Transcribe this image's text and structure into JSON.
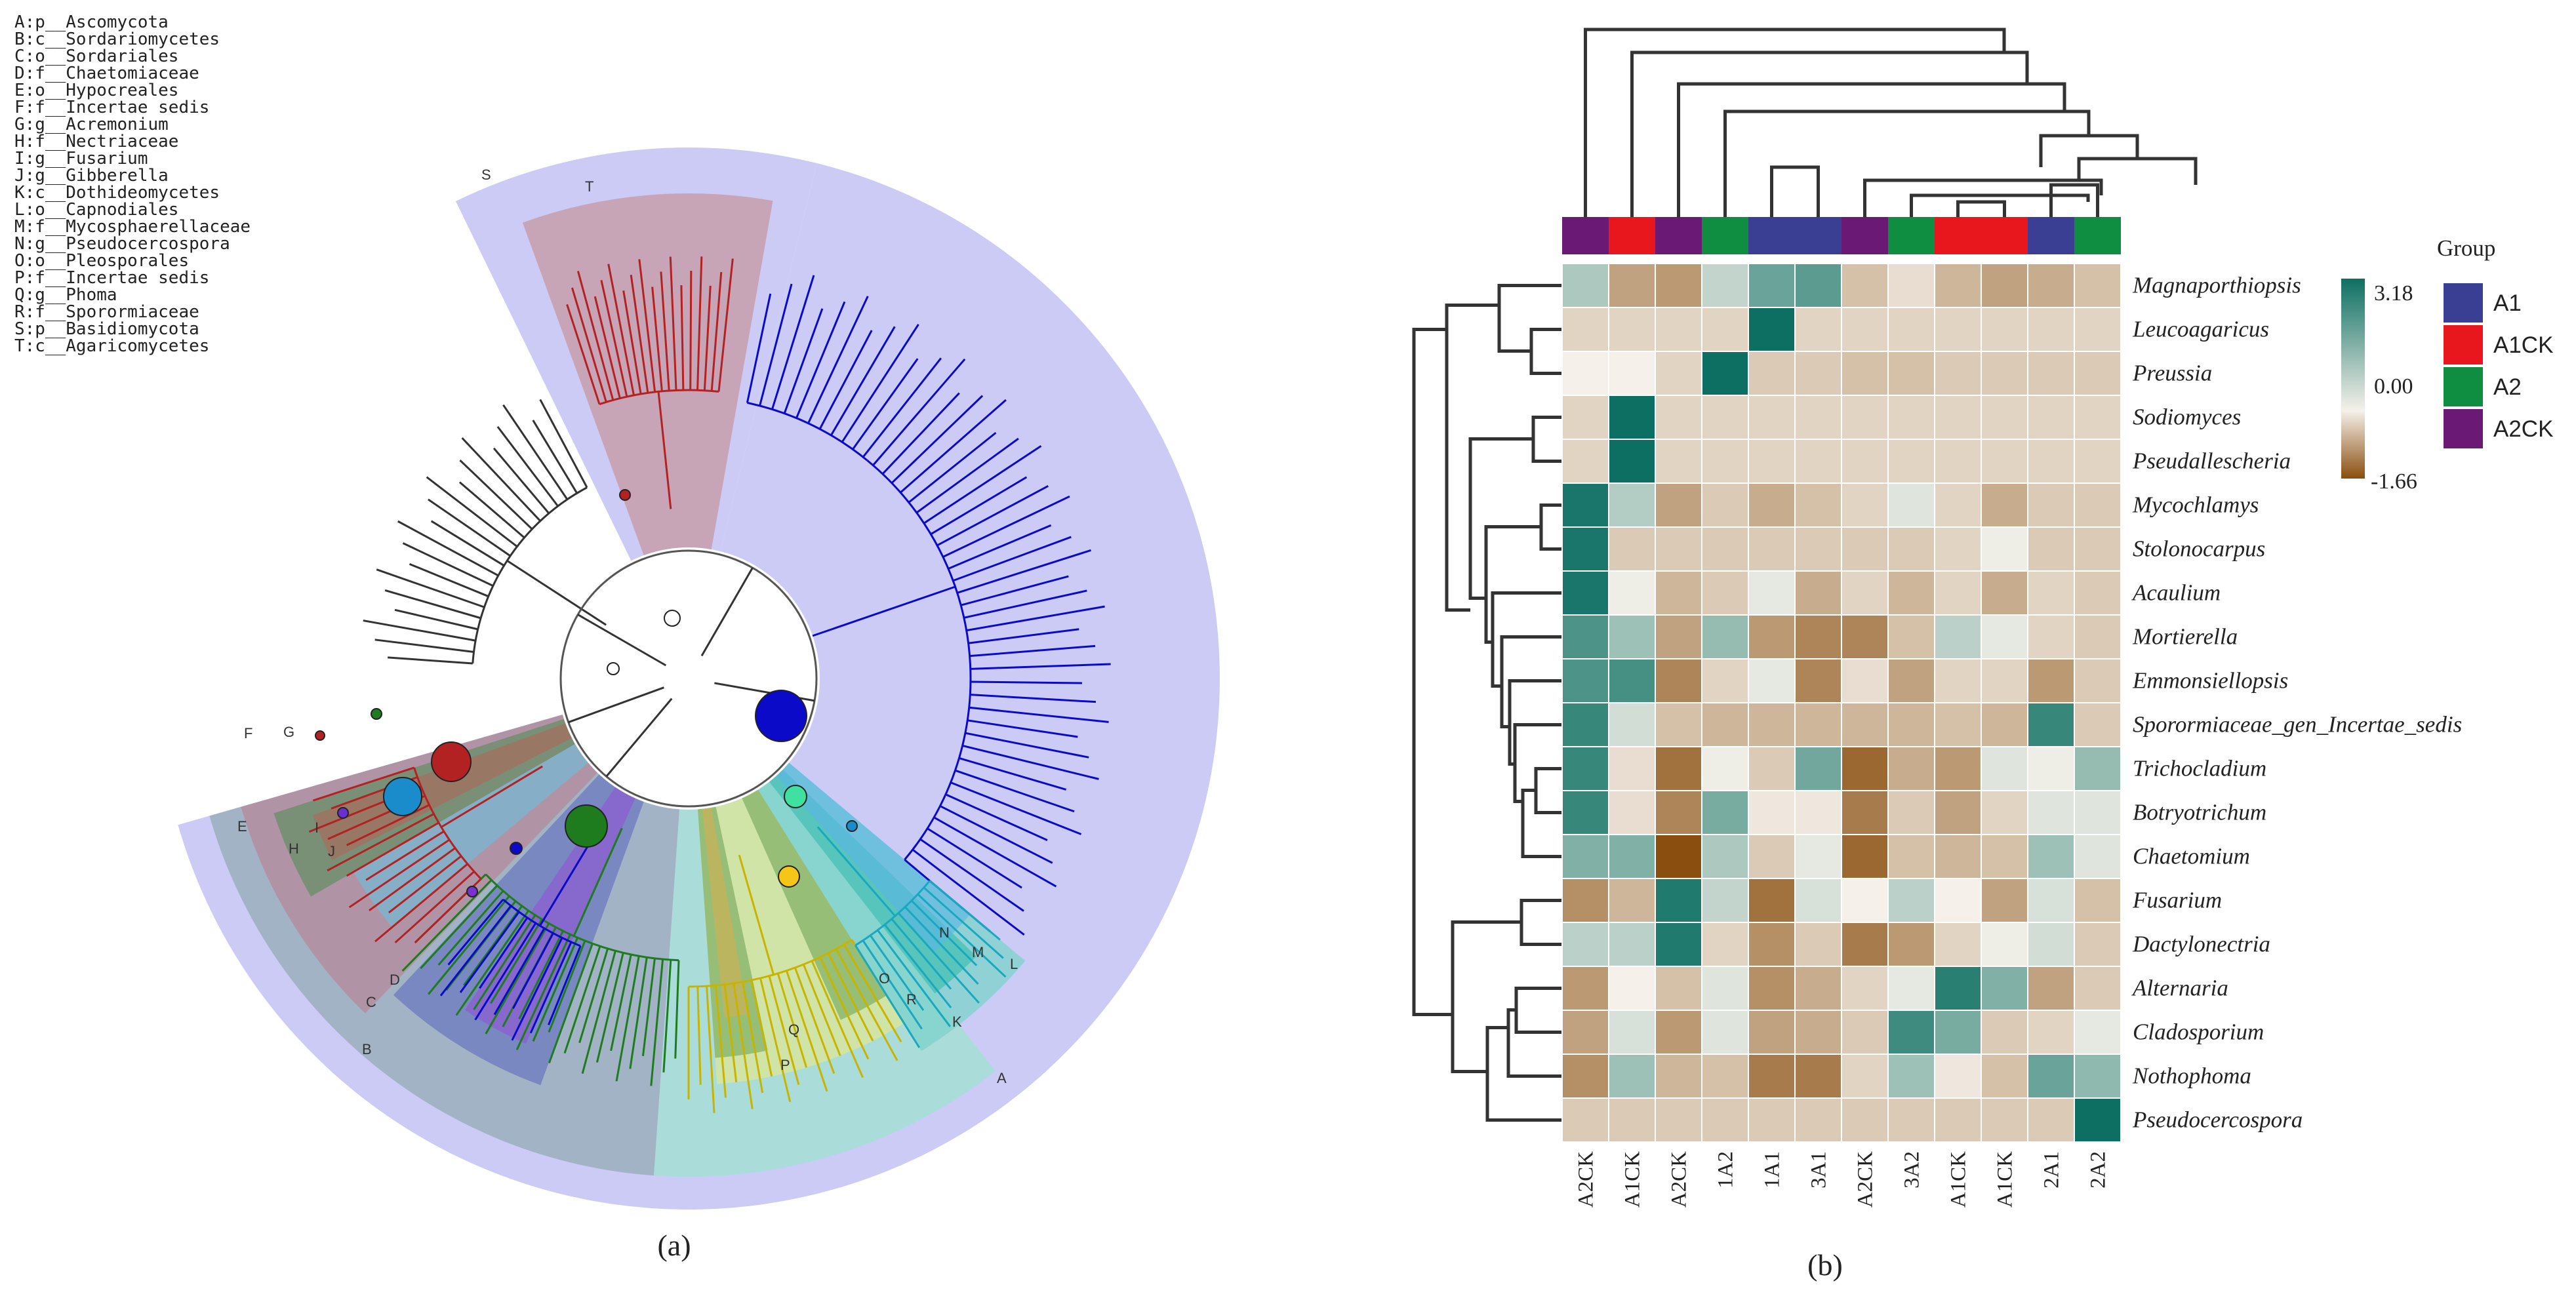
{
  "panel_a": {
    "label": "(a)",
    "taxa_legend": [
      "A:p__Ascomycota",
      "B:c__Sordariomycetes",
      "C:o__Sordariales",
      "D:f__Chaetomiaceae",
      "E:o__Hypocreales",
      "F:f__Incertae sedis",
      "G:g__Acremonium",
      "H:f__Nectriaceae",
      "I:g__Fusarium",
      "J:g__Gibberella",
      "K:c__Dothideomycetes",
      "L:o__Capnodiales",
      "M:f__Mycosphaerellaceae",
      "N:g__Pseudocercospora",
      "O:o__Pleosporales",
      "P:f__Incertae sedis",
      "Q:g__Phoma",
      "R:f__Sporormiaceae",
      "S:p__Basidiomycota",
      "T:c__Agaricomycetes"
    ],
    "clade_letters": [
      "A",
      "B",
      "C",
      "D",
      "E",
      "F",
      "G",
      "H",
      "I",
      "J",
      "K",
      "L",
      "M",
      "N",
      "O",
      "P",
      "Q",
      "R",
      "S",
      "T"
    ],
    "colors": {
      "A2": "#0a0ac8",
      "A2CK": "#b22222",
      "A1": "#1e7b1e",
      "A1CK": "#1a8ccc",
      "outer": "#c8c8f5",
      "neutral": "#333333"
    }
  },
  "chart_data": {
    "type": "heatmap",
    "title": "",
    "panel_label": "(b)",
    "columns": [
      "A2CK",
      "A1CK",
      "A2CK",
      "1A2",
      "1A1",
      "3A1",
      "A2CK",
      "3A2",
      "A1CK",
      "A1CK",
      "2A1",
      "2A2"
    ],
    "column_groups": [
      "A2CK",
      "A1CK",
      "A2CK",
      "A2",
      "A1",
      "A1",
      "A2CK",
      "A2",
      "A1CK",
      "A1CK",
      "A1",
      "A2"
    ],
    "rows": [
      "Magnaporthiopsis",
      "Leucoagaricus",
      "Preussia",
      "Sodiomyces",
      "Pseudallescheria",
      "Mycochlamys",
      "Stolonocarpus",
      "Acaulium",
      "Mortierella",
      "Emmonsiellopsis",
      "Sporormiaceae_gen_Incertae_sedis",
      "Trichocladium",
      "Botryotrichum",
      "Chaetomium",
      "Fusarium",
      "Dactylonectria",
      "Alternaria",
      "Cladosporium",
      "Nothophoma",
      "Pseudocercospora"
    ],
    "values": [
      [
        1.0,
        -0.8,
        -0.9,
        0.7,
        1.9,
        2.1,
        -0.5,
        -0.2,
        -0.6,
        -0.8,
        -0.7,
        -0.5
      ],
      [
        -0.3,
        -0.3,
        -0.3,
        -0.3,
        3.18,
        -0.3,
        -0.3,
        -0.3,
        -0.3,
        -0.3,
        -0.3,
        -0.3
      ],
      [
        0.0,
        0.0,
        -0.3,
        3.18,
        -0.4,
        -0.4,
        -0.5,
        -0.5,
        -0.4,
        -0.4,
        -0.4,
        -0.4
      ],
      [
        -0.3,
        3.18,
        -0.3,
        -0.3,
        -0.3,
        -0.3,
        -0.3,
        -0.3,
        -0.3,
        -0.3,
        -0.3,
        -0.3
      ],
      [
        -0.3,
        3.18,
        -0.3,
        -0.3,
        -0.3,
        -0.3,
        -0.3,
        -0.3,
        -0.3,
        -0.3,
        -0.3,
        -0.3
      ],
      [
        3.0,
        0.9,
        -0.8,
        -0.4,
        -0.7,
        -0.5,
        -0.3,
        0.3,
        -0.3,
        -0.7,
        -0.4,
        -0.4
      ],
      [
        3.0,
        -0.4,
        -0.4,
        -0.4,
        -0.4,
        -0.4,
        -0.4,
        -0.4,
        -0.3,
        0.1,
        -0.4,
        -0.4
      ],
      [
        3.0,
        0.1,
        -0.6,
        -0.4,
        0.2,
        -0.7,
        -0.3,
        -0.6,
        -0.3,
        -0.7,
        -0.3,
        -0.4
      ],
      [
        2.3,
        1.2,
        -0.8,
        1.3,
        -0.9,
        -1.1,
        -1.1,
        -0.5,
        0.8,
        0.2,
        -0.3,
        -0.4
      ],
      [
        2.3,
        2.4,
        -1.1,
        -0.3,
        0.2,
        -1.1,
        -0.2,
        -0.8,
        -0.3,
        -0.3,
        -0.9,
        -0.4
      ],
      [
        2.6,
        0.5,
        -0.5,
        -0.6,
        -0.6,
        -0.6,
        -0.6,
        -0.6,
        -0.5,
        -0.6,
        2.6,
        -0.4
      ],
      [
        2.6,
        -0.2,
        -1.3,
        0.1,
        -0.4,
        1.8,
        -1.4,
        -0.7,
        -0.9,
        0.3,
        0.1,
        1.3
      ],
      [
        2.6,
        -0.2,
        -1.1,
        1.7,
        -0.1,
        -0.1,
        -1.2,
        -0.4,
        -0.8,
        -0.3,
        0.3,
        0.3
      ],
      [
        1.6,
        1.6,
        -1.66,
        1.0,
        -0.4,
        0.2,
        -1.4,
        -0.5,
        -0.6,
        -0.5,
        1.2,
        0.3
      ],
      [
        -1.0,
        -0.6,
        2.9,
        0.7,
        -1.3,
        0.4,
        0.0,
        0.8,
        0.0,
        -0.8,
        0.4,
        -0.5
      ],
      [
        0.8,
        0.8,
        2.9,
        -0.3,
        -1.0,
        -0.4,
        -1.2,
        -0.9,
        -0.3,
        0.1,
        0.5,
        -0.4
      ],
      [
        -0.9,
        0.0,
        -0.5,
        0.3,
        -1.0,
        -0.7,
        -0.3,
        0.2,
        2.8,
        1.6,
        -0.8,
        -0.4
      ],
      [
        -0.8,
        0.4,
        -0.9,
        0.3,
        -0.8,
        -0.7,
        -0.4,
        2.5,
        1.7,
        -0.4,
        -0.3,
        0.2
      ],
      [
        -1.0,
        1.2,
        -0.6,
        -0.5,
        -1.2,
        -1.2,
        -0.3,
        1.2,
        -0.1,
        -0.5,
        1.9,
        1.4
      ],
      [
        -0.4,
        -0.4,
        -0.4,
        -0.4,
        -0.4,
        -0.4,
        -0.4,
        -0.4,
        -0.4,
        -0.4,
        -0.4,
        3.18
      ]
    ],
    "color_scale": {
      "min": -1.66,
      "mid": 0.0,
      "max": 3.18,
      "min_label": "-1.66",
      "mid_label": "0.00",
      "max_label": "3.18",
      "min_color": "#8a4e0f",
      "mid_color": "#f5f1ea",
      "max_color": "#0d6f62"
    },
    "legend": {
      "title": "Group",
      "items": [
        {
          "name": "A1",
          "color": "#3b3f93"
        },
        {
          "name": "A1CK",
          "color": "#e8171e"
        },
        {
          "name": "A2",
          "color": "#0f8e42"
        },
        {
          "name": "A2CK",
          "color": "#6a1a74"
        }
      ]
    }
  }
}
